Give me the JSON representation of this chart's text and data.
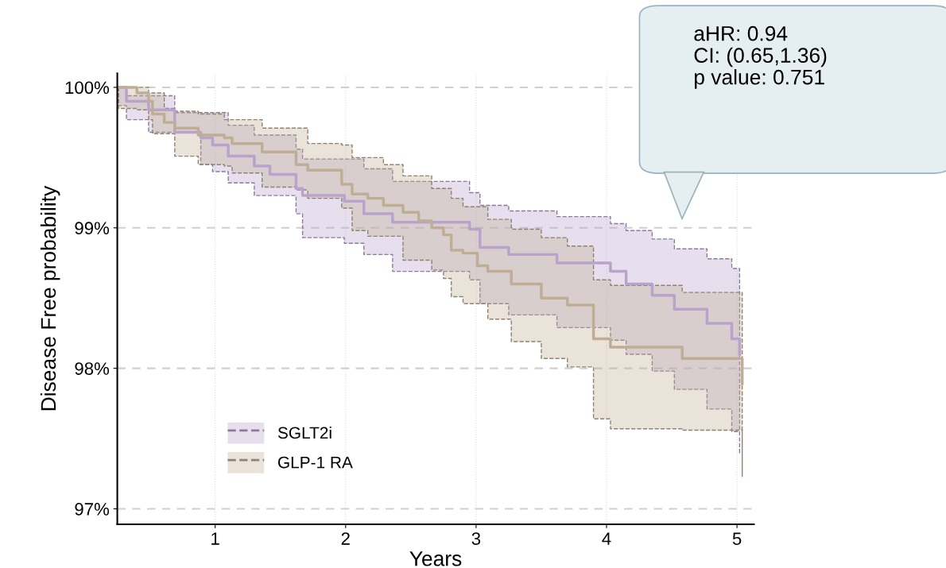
{
  "chart_data": {
    "type": "step",
    "xlabel": "Years",
    "ylabel": "Disease Free probability",
    "xlim": [
      0.25,
      5.13
    ],
    "xticks": [
      1,
      2,
      3,
      4,
      5
    ],
    "ylim": [
      96.89,
      100.1
    ],
    "yticks": [
      {
        "value": 97,
        "label": "97%"
      },
      {
        "value": 98,
        "label": "98%"
      },
      {
        "value": 99,
        "label": "99%"
      },
      {
        "value": 100,
        "label": "100%"
      }
    ],
    "grid": true,
    "legend": "bottom left",
    "annotations": [
      "aHR: 0.94",
      "CI: (0.65,1.36)",
      "p value: 0.751"
    ],
    "series": [
      {
        "name": "SGLT2i",
        "color": "#b9a3cc",
        "x": [
          0.26,
          0.32,
          0.49,
          0.69,
          0.89,
          0.98,
          1.1,
          1.3,
          1.42,
          1.62,
          1.67,
          1.99,
          2.14,
          2.36,
          2.95,
          3.03,
          3.25,
          3.62,
          4.03,
          4.15,
          4.35,
          4.52,
          4.77,
          4.96,
          5.02
        ],
        "values": [
          100.0,
          99.9,
          99.84,
          99.68,
          99.64,
          99.59,
          99.51,
          99.44,
          99.38,
          99.28,
          99.23,
          99.19,
          99.1,
          99.04,
          98.99,
          98.86,
          98.81,
          98.75,
          98.69,
          98.6,
          98.52,
          98.42,
          98.32,
          98.21,
          98.1
        ],
        "lower": [
          99.87,
          99.77,
          99.68,
          99.68,
          99.45,
          99.4,
          99.32,
          99.23,
          99.23,
          99.1,
          98.93,
          98.89,
          98.81,
          98.69,
          98.63,
          98.46,
          98.38,
          98.29,
          98.2,
          98.1,
          97.98,
          97.85,
          97.71,
          97.55,
          97.39
        ],
        "upper": [
          100.0,
          99.94,
          99.94,
          99.82,
          99.82,
          99.82,
          99.73,
          99.66,
          99.66,
          99.56,
          99.49,
          99.49,
          99.42,
          99.33,
          99.25,
          99.16,
          99.12,
          99.08,
          99.03,
          98.98,
          98.92,
          98.85,
          98.78,
          98.71,
          98.63
        ]
      },
      {
        "name": "GLP-1 RA",
        "color": "#bfae95",
        "x": [
          0.26,
          0.4,
          0.49,
          0.52,
          0.61,
          0.69,
          0.87,
          1.07,
          1.13,
          1.36,
          1.62,
          1.71,
          1.97,
          2.05,
          2.17,
          2.29,
          2.44,
          2.56,
          2.66,
          2.75,
          2.81,
          2.9,
          3.01,
          3.09,
          3.27,
          3.5,
          3.7,
          3.9,
          4.03,
          4.58,
          5.04
        ],
        "values": [
          100.0,
          99.96,
          99.9,
          99.81,
          99.75,
          99.71,
          99.66,
          99.64,
          99.6,
          99.54,
          99.45,
          99.41,
          99.31,
          99.24,
          99.21,
          99.16,
          99.11,
          99.05,
          99.0,
          98.95,
          98.84,
          98.82,
          98.73,
          98.69,
          98.6,
          98.5,
          98.45,
          98.21,
          98.15,
          98.07,
          97.89
        ],
        "lower": [
          99.85,
          99.84,
          99.77,
          99.67,
          99.67,
          99.51,
          99.45,
          99.44,
          99.39,
          99.29,
          99.27,
          99.21,
          99.14,
          98.98,
          98.94,
          98.94,
          98.77,
          98.77,
          98.7,
          98.64,
          98.51,
          98.46,
          98.46,
          98.35,
          98.19,
          98.07,
          98.01,
          97.64,
          97.57,
          97.56,
          97.23
        ],
        "upper": [
          100.0,
          100.0,
          99.96,
          99.96,
          99.85,
          99.83,
          99.81,
          99.77,
          99.77,
          99.71,
          99.71,
          99.6,
          99.59,
          99.5,
          99.5,
          99.45,
          99.37,
          99.37,
          99.28,
          99.28,
          99.21,
          99.15,
          99.15,
          99.06,
          98.99,
          98.93,
          98.87,
          98.63,
          98.59,
          98.54,
          98.47
        ]
      }
    ]
  }
}
